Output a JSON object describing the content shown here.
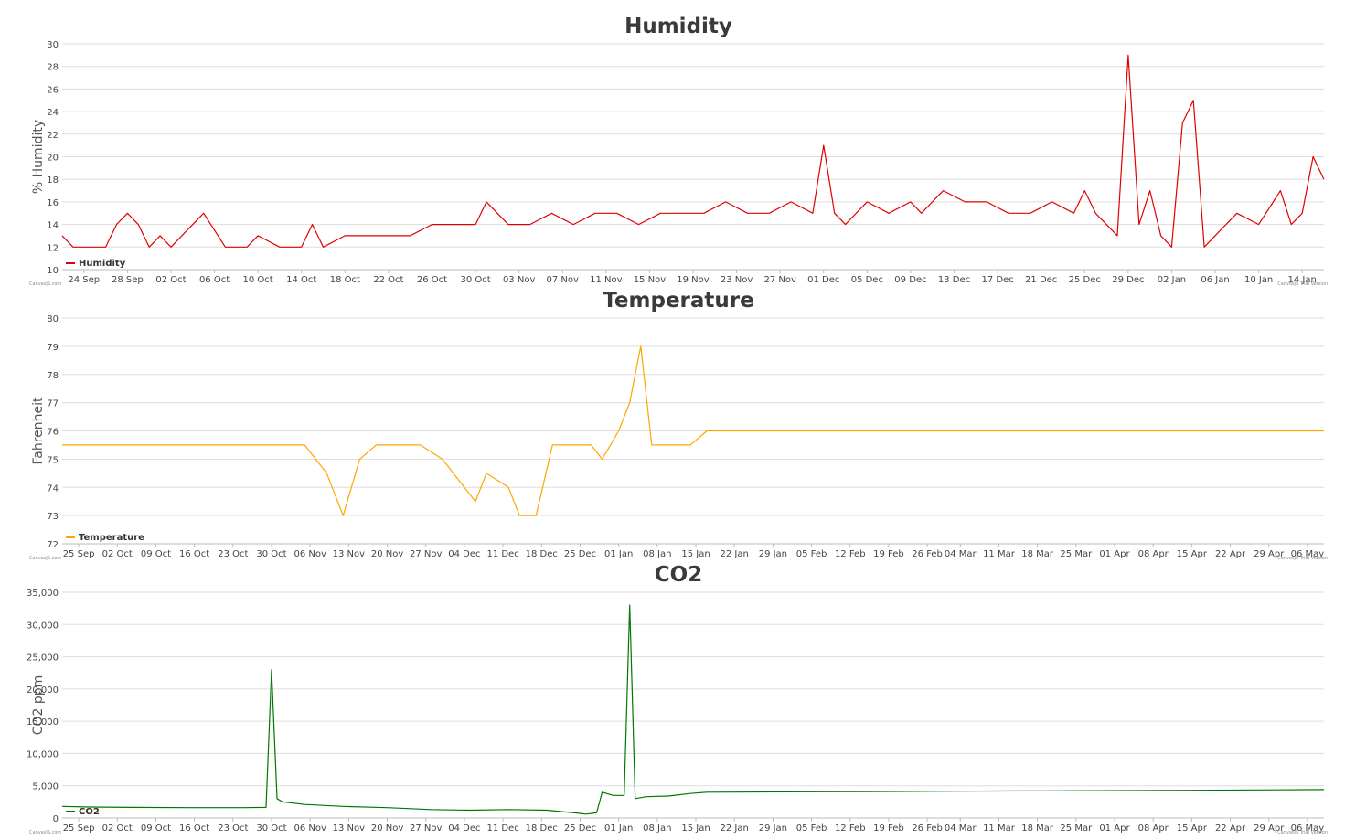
{
  "watermark_left": "CanvasJS.com",
  "watermark_right": "CanvasJS Trial Version",
  "chart_data": [
    {
      "type": "line",
      "title": "Humidity",
      "ylabel": "% Humidity",
      "legend": "Humidity",
      "legend_position": "bottom-left",
      "color": "#e00000",
      "ylim": [
        10,
        30
      ],
      "y_ticks": [
        "10",
        "12",
        "14",
        "16",
        "18",
        "20",
        "22",
        "24",
        "26",
        "28",
        "30"
      ],
      "x_ticks": [
        "24 Sep",
        "28 Sep",
        "02 Oct",
        "06 Oct",
        "10 Oct",
        "14 Oct",
        "18 Oct",
        "22 Oct",
        "26 Oct",
        "30 Oct",
        "03 Nov",
        "07 Nov",
        "11 Nov",
        "15 Nov",
        "19 Nov",
        "23 Nov",
        "27 Nov",
        "01 Dec",
        "05 Dec",
        "09 Dec",
        "13 Dec",
        "17 Dec",
        "21 Dec",
        "25 Dec",
        "29 Dec",
        "02 Jan",
        "06 Jan",
        "10 Jan",
        "14 Jan"
      ],
      "x_range": [
        "2017-09-22",
        "2018-01-16"
      ],
      "grid": true,
      "series": [
        {
          "x": [
            "2017-09-22",
            "2017-09-23",
            "2017-09-24",
            "2017-09-26",
            "2017-09-27",
            "2017-09-28",
            "2017-09-29",
            "2017-09-30",
            "2017-10-01",
            "2017-10-02",
            "2017-10-03",
            "2017-10-05",
            "2017-10-07",
            "2017-10-09",
            "2017-10-10",
            "2017-10-12",
            "2017-10-14",
            "2017-10-15",
            "2017-10-16",
            "2017-10-18",
            "2017-10-20",
            "2017-10-22",
            "2017-10-24",
            "2017-10-26",
            "2017-10-28",
            "2017-10-30",
            "2017-10-31",
            "2017-11-02",
            "2017-11-04",
            "2017-11-06",
            "2017-11-08",
            "2017-11-10",
            "2017-11-12",
            "2017-11-14",
            "2017-11-16",
            "2017-11-18",
            "2017-11-20",
            "2017-11-22",
            "2017-11-24",
            "2017-11-26",
            "2017-11-28",
            "2017-11-30",
            "2017-12-01",
            "2017-12-02",
            "2017-12-03",
            "2017-12-05",
            "2017-12-07",
            "2017-12-09",
            "2017-12-10",
            "2017-12-12",
            "2017-12-14",
            "2017-12-16",
            "2017-12-18",
            "2017-12-20",
            "2017-12-22",
            "2017-12-24",
            "2017-12-25",
            "2017-12-26",
            "2017-12-27",
            "2017-12-28",
            "2017-12-29",
            "2017-12-30",
            "2017-12-31",
            "2018-01-01",
            "2018-01-02",
            "2018-01-03",
            "2018-01-04",
            "2018-01-05",
            "2018-01-06",
            "2018-01-08",
            "2018-01-10",
            "2018-01-12",
            "2018-01-13",
            "2018-01-14",
            "2018-01-15",
            "2018-01-16"
          ],
          "y": [
            13,
            12,
            12,
            12,
            14,
            15,
            14,
            12,
            13,
            12,
            13,
            15,
            12,
            12,
            13,
            12,
            12,
            14,
            12,
            13,
            13,
            13,
            13,
            14,
            14,
            14,
            16,
            14,
            14,
            15,
            14,
            15,
            15,
            14,
            15,
            15,
            15,
            16,
            15,
            15,
            16,
            15,
            21,
            15,
            14,
            16,
            15,
            16,
            15,
            17,
            16,
            16,
            15,
            15,
            16,
            15,
            17,
            15,
            14,
            13,
            29,
            14,
            17,
            13,
            12,
            23,
            25,
            12,
            13,
            15,
            14,
            17,
            14,
            15,
            20,
            18
          ]
        }
      ]
    },
    {
      "type": "line",
      "title": "Temperature",
      "ylabel": "Fahrenheit",
      "legend": "Temperature",
      "legend_position": "bottom-left",
      "color": "#ffa500",
      "ylim": [
        72,
        80
      ],
      "y_ticks": [
        "72",
        "73",
        "74",
        "75",
        "76",
        "77",
        "78",
        "79",
        "80"
      ],
      "x_ticks": [
        "25 Sep",
        "02 Oct",
        "09 Oct",
        "16 Oct",
        "23 Oct",
        "30 Oct",
        "06 Nov",
        "13 Nov",
        "20 Nov",
        "27 Nov",
        "04 Dec",
        "11 Dec",
        "18 Dec",
        "25 Dec",
        "01 Jan",
        "08 Jan",
        "15 Jan",
        "22 Jan",
        "29 Jan",
        "05 Feb",
        "12 Feb",
        "19 Feb",
        "26 Feb",
        "04 Mar",
        "11 Mar",
        "18 Mar",
        "25 Mar",
        "01 Apr",
        "08 Apr",
        "15 Apr",
        "22 Apr",
        "29 Apr",
        "06 May"
      ],
      "x_range": [
        "2017-09-22",
        "2018-05-09"
      ],
      "grid": true,
      "series": [
        {
          "x": [
            "2017-09-22",
            "2017-10-01",
            "2017-10-10",
            "2017-10-20",
            "2017-10-30",
            "2017-11-05",
            "2017-11-09",
            "2017-11-12",
            "2017-11-15",
            "2017-11-18",
            "2017-11-22",
            "2017-11-26",
            "2017-11-30",
            "2017-12-04",
            "2017-12-06",
            "2017-12-08",
            "2017-12-12",
            "2017-12-14",
            "2017-12-17",
            "2017-12-20",
            "2017-12-24",
            "2017-12-27",
            "2017-12-29",
            "2018-01-01",
            "2018-01-03",
            "2018-01-04",
            "2018-01-05",
            "2018-01-07",
            "2018-01-10",
            "2018-01-14",
            "2018-01-17",
            "2018-02-15",
            "2018-03-15",
            "2018-04-15",
            "2018-05-09"
          ],
          "y": [
            75.5,
            75.5,
            75.5,
            75.5,
            75.5,
            75.5,
            74.5,
            73,
            75,
            75.5,
            75.5,
            75.5,
            75,
            74,
            73.5,
            74.5,
            74,
            73,
            73,
            75.5,
            75.5,
            75.5,
            75,
            76,
            77,
            78,
            79,
            75.5,
            75.5,
            75.5,
            76,
            76,
            76,
            76,
            76
          ]
        }
      ]
    },
    {
      "type": "line",
      "title": "CO2",
      "ylabel": "CO2 ppm",
      "legend": "CO2",
      "legend_position": "bottom-left",
      "color": "#007700",
      "ylim": [
        0,
        35000
      ],
      "y_ticks": [
        "0",
        "5,000",
        "10,000",
        "15,000",
        "20,000",
        "25,000",
        "30,000",
        "35,000"
      ],
      "x_ticks": [
        "25 Sep",
        "02 Oct",
        "09 Oct",
        "16 Oct",
        "23 Oct",
        "30 Oct",
        "06 Nov",
        "13 Nov",
        "20 Nov",
        "27 Nov",
        "04 Dec",
        "11 Dec",
        "18 Dec",
        "25 Dec",
        "01 Jan",
        "08 Jan",
        "15 Jan",
        "22 Jan",
        "29 Jan",
        "05 Feb",
        "12 Feb",
        "19 Feb",
        "26 Feb",
        "04 Mar",
        "11 Mar",
        "18 Mar",
        "25 Mar",
        "01 Apr",
        "08 Apr",
        "15 Apr",
        "22 Apr",
        "29 Apr",
        "06 May"
      ],
      "x_range": [
        "2017-09-22",
        "2018-05-09"
      ],
      "grid": true,
      "series": [
        {
          "x": [
            "2017-09-22",
            "2017-09-27",
            "2017-10-05",
            "2017-10-15",
            "2017-10-25",
            "2017-10-29",
            "2017-10-30",
            "2017-10-31",
            "2017-11-01",
            "2017-11-05",
            "2017-11-12",
            "2017-11-20",
            "2017-11-28",
            "2017-12-05",
            "2017-12-12",
            "2017-12-19",
            "2017-12-24",
            "2017-12-26",
            "2017-12-28",
            "2017-12-29",
            "2017-12-31",
            "2018-01-02",
            "2018-01-03",
            "2018-01-04",
            "2018-01-06",
            "2018-01-10",
            "2018-01-14",
            "2018-01-17",
            "2018-02-15",
            "2018-03-15",
            "2018-04-15",
            "2018-05-09"
          ],
          "y": [
            1800,
            1700,
            1650,
            1600,
            1600,
            1650,
            23000,
            3000,
            2500,
            2100,
            1800,
            1600,
            1300,
            1200,
            1300,
            1200,
            800,
            600,
            800,
            4000,
            3500,
            3500,
            33000,
            3000,
            3300,
            3400,
            3800,
            4000,
            4100,
            4200,
            4300,
            4400
          ]
        }
      ]
    }
  ]
}
